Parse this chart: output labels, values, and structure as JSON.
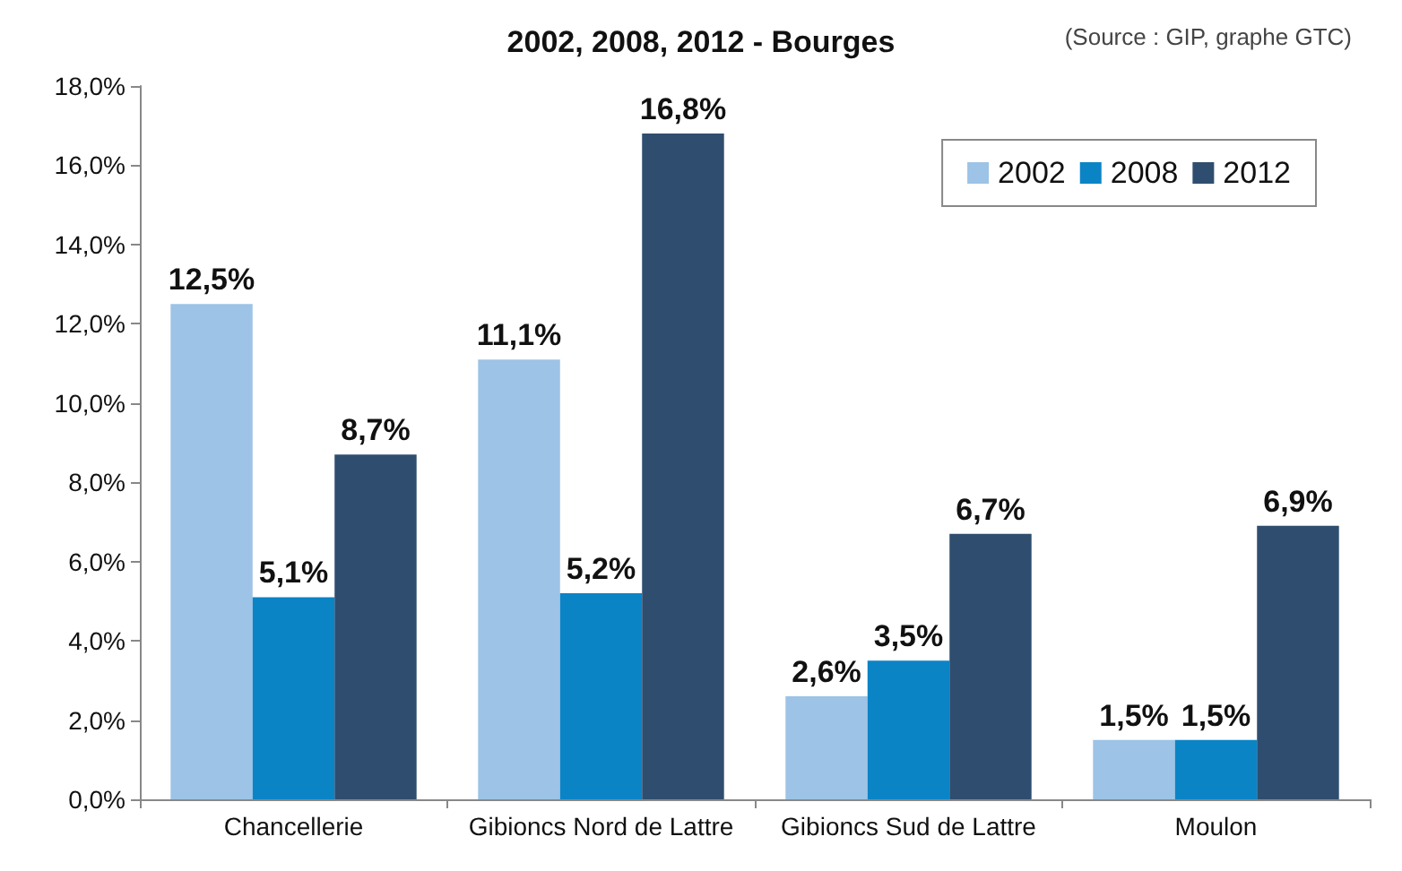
{
  "chart_data": {
    "type": "bar",
    "title": "2002, 2008, 2012 - Bourges",
    "annotations": [
      "(Source : GIP, graphe GTC)"
    ],
    "categories": [
      "Chancellerie",
      "Gibioncs Nord de Lattre",
      "Gibioncs Sud de Lattre",
      "Moulon"
    ],
    "series": [
      {
        "name": "2002",
        "color": "#9dc3e6",
        "values": [
          12.5,
          11.1,
          2.6,
          1.5
        ],
        "value_labels": [
          "12,5%",
          "11,1%",
          "2,6%",
          "1,5%"
        ]
      },
      {
        "name": "2008",
        "color": "#0b84c6",
        "values": [
          5.1,
          5.2,
          3.5,
          1.5
        ],
        "value_labels": [
          "5,1%",
          "5,2%",
          "3,5%",
          "1,5%"
        ]
      },
      {
        "name": "2012",
        "color": "#2f4e6f",
        "values": [
          8.7,
          16.8,
          6.7,
          6.9
        ],
        "value_labels": [
          "8,7%",
          "16,8%",
          "6,7%",
          "6,9%"
        ]
      }
    ],
    "ylim": [
      0,
      18
    ],
    "yticks": [
      {
        "value": 0,
        "label": "0,0%"
      },
      {
        "value": 2,
        "label": "2,0%"
      },
      {
        "value": 4,
        "label": "4,0%"
      },
      {
        "value": 6,
        "label": "6,0%"
      },
      {
        "value": 8,
        "label": "8,0%"
      },
      {
        "value": 10,
        "label": "10,0%"
      },
      {
        "value": 12,
        "label": "12,0%"
      },
      {
        "value": 14,
        "label": "14,0%"
      },
      {
        "value": 16,
        "label": "16,0%"
      },
      {
        "value": 18,
        "label": "18,0%"
      }
    ],
    "grid": false,
    "legend": "top right"
  }
}
